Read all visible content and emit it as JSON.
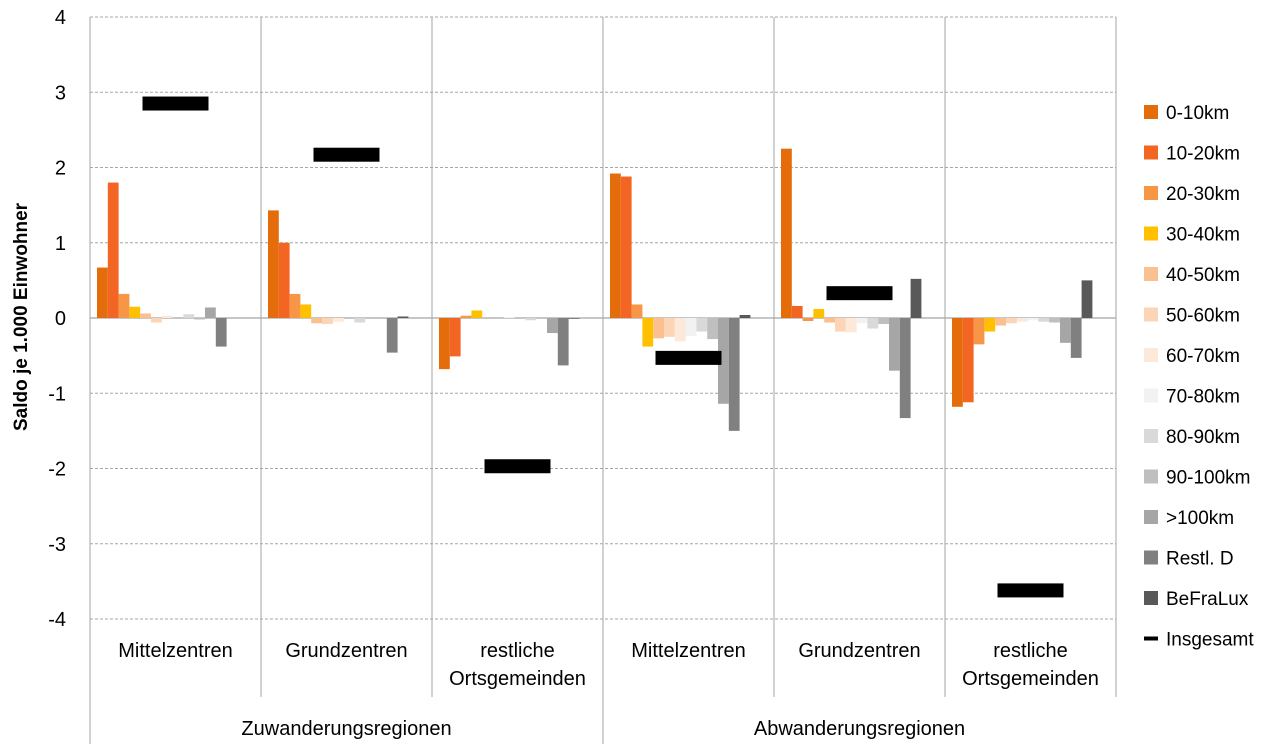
{
  "chart_data": {
    "type": "bar",
    "ylabel": "Saldo je 1.000 Einwohner",
    "ylim": [
      -4,
      4
    ],
    "yticks": [
      "4",
      "3",
      "2",
      "1",
      "0",
      "-1",
      "-2",
      "-3",
      "-4"
    ],
    "grid": true,
    "legend_position": "right",
    "groups": [
      "Zuwanderungsregionen",
      "Abwanderungsregionen"
    ],
    "categories": [
      [
        "Mittelzentren"
      ],
      [
        "Grundzentren"
      ],
      [
        "restliche",
        "Ortsgemeinden"
      ],
      [
        "Mittelzentren"
      ],
      [
        "Grundzentren"
      ],
      [
        "restliche",
        "Ortsgemeinden"
      ]
    ],
    "series": [
      {
        "name": "0-10km",
        "color": "#E46C0A",
        "values": [
          0.67,
          1.43,
          -0.68,
          1.92,
          2.25,
          -1.18
        ]
      },
      {
        "name": "10-20km",
        "color": "#F26522",
        "values": [
          1.8,
          1.0,
          -0.51,
          1.88,
          0.16,
          -1.12
        ]
      },
      {
        "name": "20-30km",
        "color": "#F79646",
        "values": [
          0.32,
          0.32,
          0.03,
          0.18,
          -0.04,
          -0.35
        ]
      },
      {
        "name": "30-40km",
        "color": "#FFC000",
        "values": [
          0.15,
          0.18,
          0.1,
          -0.38,
          0.12,
          -0.18
        ]
      },
      {
        "name": "40-50km",
        "color": "#FAC090",
        "values": [
          0.06,
          -0.07,
          0.0,
          -0.27,
          -0.06,
          -0.1
        ]
      },
      {
        "name": "50-60km",
        "color": "#FBD5B5",
        "values": [
          -0.06,
          -0.08,
          0.0,
          -0.25,
          -0.18,
          -0.07
        ]
      },
      {
        "name": "60-70km",
        "color": "#FDE9D9",
        "values": [
          0.03,
          -0.05,
          0.01,
          -0.31,
          -0.19,
          -0.05
        ]
      },
      {
        "name": "70-80km",
        "color": "#F2F2F2",
        "values": [
          0.0,
          0.0,
          0.0,
          -0.24,
          -0.07,
          -0.03
        ]
      },
      {
        "name": "80-90km",
        "color": "#D9D9D9",
        "values": [
          0.05,
          -0.06,
          -0.03,
          -0.18,
          -0.14,
          -0.05
        ]
      },
      {
        "name": "90-100km",
        "color": "#BFBFBF",
        "values": [
          -0.02,
          0.0,
          0.0,
          -0.28,
          -0.08,
          -0.06
        ]
      },
      {
        "name": ">100km",
        "color": "#A6A6A6",
        "values": [
          0.14,
          0.0,
          -0.2,
          -1.14,
          -0.7,
          -0.33
        ]
      },
      {
        "name": "Restl. D",
        "color": "#808080",
        "values": [
          -0.38,
          -0.46,
          -0.63,
          -1.5,
          -1.33,
          -0.53
        ]
      },
      {
        "name": "BeFraLux",
        "color": "#595959",
        "values": [
          0.0,
          0.02,
          -0.01,
          0.04,
          0.52,
          0.5
        ]
      }
    ],
    "total": {
      "name": "Insgesamt",
      "color": "#000000",
      "values": [
        2.85,
        2.17,
        -1.97,
        -0.53,
        0.33,
        -3.62
      ]
    }
  }
}
